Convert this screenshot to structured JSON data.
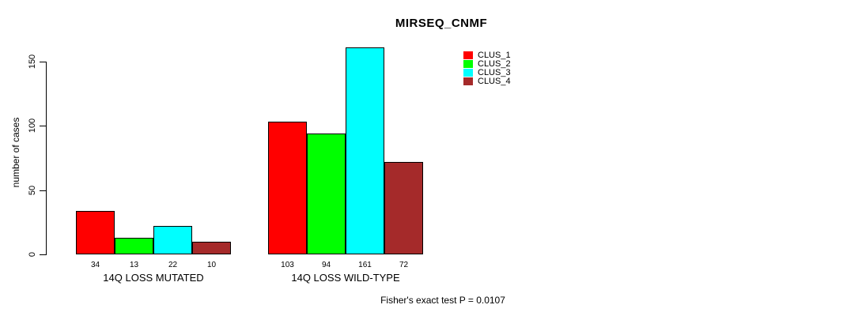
{
  "title": "MIRSEQ_CNMF",
  "ylabel": "number of cases",
  "footnote": "Fisher's exact test P = 0.0107",
  "legend": {
    "items": [
      {
        "label": "CLUS_1",
        "color": "#FF0000"
      },
      {
        "label": "CLUS_2",
        "color": "#00FF00"
      },
      {
        "label": "CLUS_3",
        "color": "#00FFFF"
      },
      {
        "label": "CLUS_4",
        "color": "#A52A2A"
      }
    ]
  },
  "chart_data": {
    "type": "bar",
    "title": "MIRSEQ_CNMF",
    "xlabel": "",
    "ylabel": "number of cases",
    "categories": [
      "14Q LOSS MUTATED",
      "14Q LOSS WILD-TYPE"
    ],
    "series": [
      {
        "name": "CLUS_1",
        "color": "#FF0000",
        "values": [
          34,
          103
        ]
      },
      {
        "name": "CLUS_2",
        "color": "#00FF00",
        "values": [
          13,
          94
        ]
      },
      {
        "name": "CLUS_3",
        "color": "#00FFFF",
        "values": [
          22,
          161
        ]
      },
      {
        "name": "CLUS_4",
        "color": "#A52A2A",
        "values": [
          10,
          72
        ]
      }
    ],
    "y_ticks": [
      0,
      50,
      100,
      150
    ],
    "ylim": [
      0,
      150
    ],
    "grid": false,
    "bar_value_labels": true,
    "legend_position": "top-right",
    "annotation": "Fisher's exact test P = 0.0107"
  }
}
